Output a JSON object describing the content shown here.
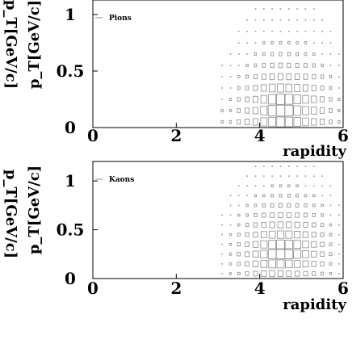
{
  "chart_data": [
    {
      "type": "heatmap",
      "legend": "Pions",
      "xlabel": "rapidity",
      "ylabel": "p_T[GeV/c]",
      "secondary_ylabel": "p_T[GeV/c]",
      "x_ticks": [
        "0",
        "2",
        "4",
        "6"
      ],
      "y_ticks": [
        "0",
        "0.5",
        "1"
      ],
      "xlim": [
        0,
        6
      ],
      "ylim": [
        0,
        1.2
      ],
      "grid": false,
      "legend_position": "top-left",
      "rapidity_bins": [
        3.0,
        3.2,
        3.4,
        3.6,
        3.8,
        4.0,
        4.2,
        4.4,
        4.6,
        4.8,
        5.0,
        5.2,
        5.4,
        5.6,
        5.8
      ],
      "pt_bins": [
        0.05,
        0.15,
        0.25,
        0.35,
        0.45,
        0.55,
        0.65,
        0.75,
        0.85,
        0.95,
        1.05,
        1.15
      ],
      "relative_counts": [
        [
          0.05,
          0.06,
          0.15,
          0.25,
          0.35,
          0.55,
          0.7,
          0.8,
          0.75,
          0.65,
          0.5,
          0.35,
          0.25,
          0.12,
          0.05
        ],
        [
          0.04,
          0.05,
          0.12,
          0.22,
          0.35,
          0.6,
          0.9,
          1.0,
          0.95,
          0.75,
          0.55,
          0.4,
          0.25,
          0.12,
          0.05
        ],
        [
          0.03,
          0.04,
          0.1,
          0.18,
          0.3,
          0.5,
          0.75,
          0.85,
          0.8,
          0.65,
          0.5,
          0.35,
          0.22,
          0.1,
          0.04
        ],
        [
          0.02,
          0.03,
          0.07,
          0.12,
          0.22,
          0.35,
          0.5,
          0.55,
          0.5,
          0.42,
          0.35,
          0.25,
          0.15,
          0.07,
          0.03
        ],
        [
          0.01,
          0.02,
          0.05,
          0.08,
          0.14,
          0.22,
          0.3,
          0.33,
          0.3,
          0.26,
          0.22,
          0.16,
          0.1,
          0.05,
          0.02
        ],
        [
          0.01,
          0.01,
          0.03,
          0.05,
          0.08,
          0.12,
          0.16,
          0.18,
          0.16,
          0.14,
          0.12,
          0.09,
          0.06,
          0.03,
          0.01
        ],
        [
          0.0,
          0.01,
          0.02,
          0.03,
          0.05,
          0.07,
          0.09,
          0.1,
          0.09,
          0.08,
          0.07,
          0.05,
          0.03,
          0.02,
          0.01
        ],
        [
          0.0,
          0.0,
          0.01,
          0.02,
          0.03,
          0.04,
          0.05,
          0.06,
          0.05,
          0.04,
          0.04,
          0.03,
          0.02,
          0.01,
          0.0
        ],
        [
          0.0,
          0.0,
          0.01,
          0.01,
          0.02,
          0.02,
          0.03,
          0.03,
          0.03,
          0.03,
          0.02,
          0.02,
          0.01,
          0.01,
          0.0
        ],
        [
          0.0,
          0.0,
          0.0,
          0.01,
          0.01,
          0.01,
          0.02,
          0.02,
          0.02,
          0.02,
          0.01,
          0.01,
          0.01,
          0.0,
          0.0
        ],
        [
          0.0,
          0.0,
          0.0,
          0.0,
          0.01,
          0.01,
          0.01,
          0.01,
          0.01,
          0.01,
          0.01,
          0.01,
          0.0,
          0.0,
          0.0
        ],
        [
          0.0,
          0.0,
          0.0,
          0.0,
          0.0,
          0.01,
          0.01,
          0.01,
          0.01,
          0.01,
          0.0,
          0.0,
          0.0,
          0.0,
          0.0
        ]
      ]
    },
    {
      "type": "heatmap",
      "legend": "Kaons",
      "xlabel": "rapidity",
      "ylabel": "p_T[GeV/c]",
      "secondary_ylabel": "p_T[GeV/c]",
      "x_ticks": [
        "0",
        "2",
        "4",
        "6"
      ],
      "y_ticks": [
        "0",
        "0.5",
        "1"
      ],
      "xlim": [
        0,
        6
      ],
      "ylim": [
        0,
        1.2
      ],
      "grid": false,
      "legend_position": "top-left",
      "rapidity_bins": [
        3.0,
        3.2,
        3.4,
        3.6,
        3.8,
        4.0,
        4.2,
        4.4,
        4.6,
        4.8,
        5.0,
        5.2,
        5.4,
        5.6,
        5.8
      ],
      "pt_bins": [
        0.05,
        0.15,
        0.25,
        0.35,
        0.45,
        0.55,
        0.65,
        0.75,
        0.85,
        0.95,
        1.05,
        1.15
      ],
      "relative_counts": [
        [
          0.02,
          0.04,
          0.08,
          0.15,
          0.25,
          0.35,
          0.4,
          0.38,
          0.33,
          0.28,
          0.22,
          0.16,
          0.1,
          0.05,
          0.02
        ],
        [
          0.03,
          0.05,
          0.12,
          0.22,
          0.38,
          0.55,
          0.7,
          0.72,
          0.65,
          0.55,
          0.42,
          0.3,
          0.18,
          0.08,
          0.03
        ],
        [
          0.03,
          0.06,
          0.14,
          0.25,
          0.42,
          0.65,
          0.85,
          1.0,
          0.9,
          0.75,
          0.55,
          0.38,
          0.22,
          0.1,
          0.03
        ],
        [
          0.02,
          0.05,
          0.12,
          0.22,
          0.38,
          0.58,
          0.75,
          0.85,
          0.8,
          0.68,
          0.5,
          0.35,
          0.2,
          0.09,
          0.03
        ],
        [
          0.02,
          0.04,
          0.09,
          0.16,
          0.28,
          0.42,
          0.55,
          0.62,
          0.58,
          0.5,
          0.38,
          0.26,
          0.15,
          0.07,
          0.02
        ],
        [
          0.01,
          0.03,
          0.06,
          0.11,
          0.19,
          0.28,
          0.36,
          0.4,
          0.38,
          0.33,
          0.25,
          0.18,
          0.1,
          0.05,
          0.02
        ],
        [
          0.01,
          0.02,
          0.04,
          0.07,
          0.12,
          0.18,
          0.23,
          0.26,
          0.24,
          0.21,
          0.16,
          0.11,
          0.07,
          0.03,
          0.01
        ],
        [
          0.0,
          0.01,
          0.02,
          0.04,
          0.07,
          0.11,
          0.14,
          0.16,
          0.15,
          0.13,
          0.1,
          0.07,
          0.04,
          0.02,
          0.01
        ],
        [
          0.0,
          0.01,
          0.01,
          0.02,
          0.04,
          0.06,
          0.08,
          0.09,
          0.09,
          0.08,
          0.06,
          0.04,
          0.02,
          0.01,
          0.0
        ],
        [
          0.0,
          0.0,
          0.01,
          0.01,
          0.02,
          0.03,
          0.05,
          0.05,
          0.05,
          0.04,
          0.03,
          0.02,
          0.01,
          0.01,
          0.0
        ],
        [
          0.0,
          0.0,
          0.0,
          0.01,
          0.01,
          0.02,
          0.03,
          0.03,
          0.03,
          0.02,
          0.02,
          0.01,
          0.01,
          0.0,
          0.0
        ],
        [
          0.0,
          0.0,
          0.0,
          0.0,
          0.01,
          0.01,
          0.01,
          0.02,
          0.02,
          0.01,
          0.01,
          0.01,
          0.0,
          0.0,
          0.0
        ]
      ]
    }
  ]
}
